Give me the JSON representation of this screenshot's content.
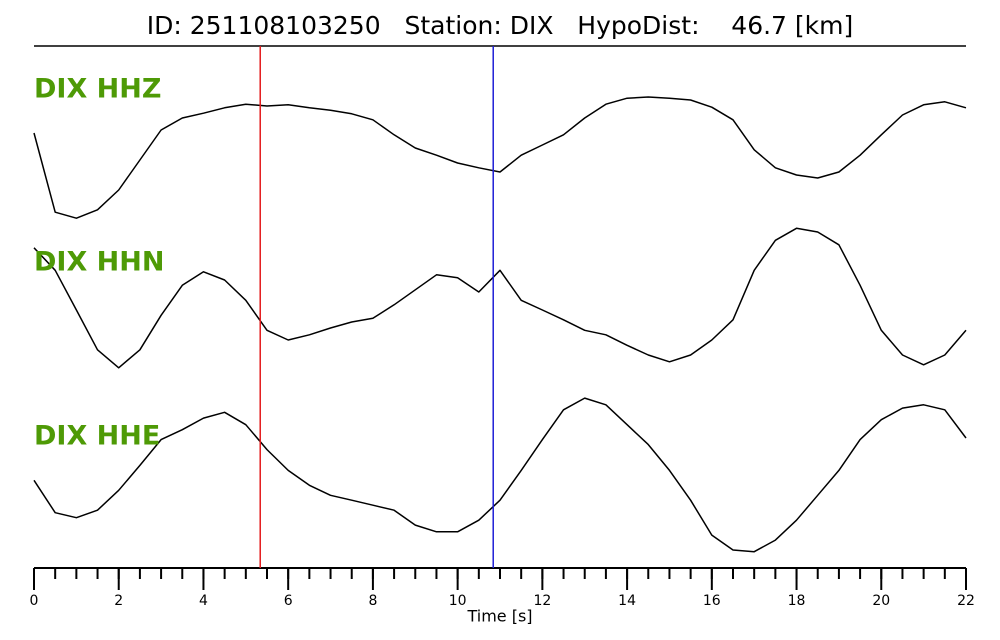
{
  "chart_data": {
    "type": "seismogram",
    "title": "ID: 251108103250   Station: DIX   HypoDist:    46.7 [km]",
    "x_label": "Time [s]",
    "xlim": [
      0,
      22
    ],
    "xticks": [
      0,
      2,
      4,
      6,
      8,
      10,
      12,
      14,
      16,
      18,
      20,
      22
    ],
    "xminorstep": 0.5,
    "label_color": "#4e9a06",
    "picks": [
      {
        "x": 5.34,
        "color": "#e41a1c"
      },
      {
        "x": 10.84,
        "color": "#1f1fd6"
      }
    ],
    "x": [
      0,
      0.5,
      1,
      1.5,
      2,
      2.5,
      3,
      3.5,
      4,
      4.5,
      5,
      5.5,
      6,
      6.5,
      7,
      7.5,
      8,
      8.5,
      9,
      9.5,
      10,
      10.5,
      11,
      11.5,
      12,
      12.5,
      13,
      13.5,
      14,
      14.5,
      15,
      15.5,
      16,
      16.5,
      17,
      17.5,
      18,
      18.5,
      19,
      19.5,
      20,
      20.5,
      21,
      21.5,
      22
    ],
    "series": [
      {
        "name": "DIX HHZ",
        "color": "#000000",
        "values": [
          0.45,
          -0.87,
          -0.97,
          -0.83,
          -0.5,
          0,
          0.5,
          0.7,
          0.78,
          0.87,
          0.93,
          0.9,
          0.92,
          0.87,
          0.83,
          0.77,
          0.67,
          0.42,
          0.2,
          0.08,
          -0.05,
          -0.13,
          -0.2,
          0.08,
          0.25,
          0.42,
          0.7,
          0.93,
          1.03,
          1.05,
          1.03,
          1.0,
          0.88,
          0.67,
          0.17,
          -0.13,
          -0.25,
          -0.3,
          -0.2,
          0.08,
          0.42,
          0.75,
          0.92,
          0.97,
          0.87
        ]
      },
      {
        "name": "DIX HHN",
        "color": "#000000",
        "values": [
          0.63,
          0.33,
          -0.2,
          -0.73,
          -0.97,
          -0.73,
          -0.27,
          0.13,
          0.31,
          0.2,
          -0.07,
          -0.47,
          -0.6,
          -0.53,
          -0.44,
          -0.36,
          -0.31,
          -0.13,
          0.07,
          0.27,
          0.23,
          0.04,
          0.33,
          -0.07,
          -0.2,
          -0.33,
          -0.47,
          -0.53,
          -0.67,
          -0.8,
          -0.89,
          -0.8,
          -0.6,
          -0.33,
          0.33,
          0.73,
          0.89,
          0.84,
          0.67,
          0.13,
          -0.47,
          -0.8,
          -0.93,
          -0.8,
          -0.47
        ]
      },
      {
        "name": "DIX HHE",
        "color": "#000000",
        "values": [
          -0.04,
          -0.43,
          -0.49,
          -0.4,
          -0.16,
          0.14,
          0.45,
          0.57,
          0.71,
          0.78,
          0.63,
          0.33,
          0.08,
          -0.1,
          -0.22,
          -0.28,
          -0.34,
          -0.4,
          -0.58,
          -0.66,
          -0.66,
          -0.52,
          -0.28,
          0.08,
          0.45,
          0.81,
          0.95,
          0.87,
          0.63,
          0.39,
          0.08,
          -0.28,
          -0.7,
          -0.88,
          -0.9,
          -0.76,
          -0.52,
          -0.22,
          0.08,
          0.45,
          0.69,
          0.83,
          0.87,
          0.81,
          0.47
        ]
      }
    ]
  }
}
